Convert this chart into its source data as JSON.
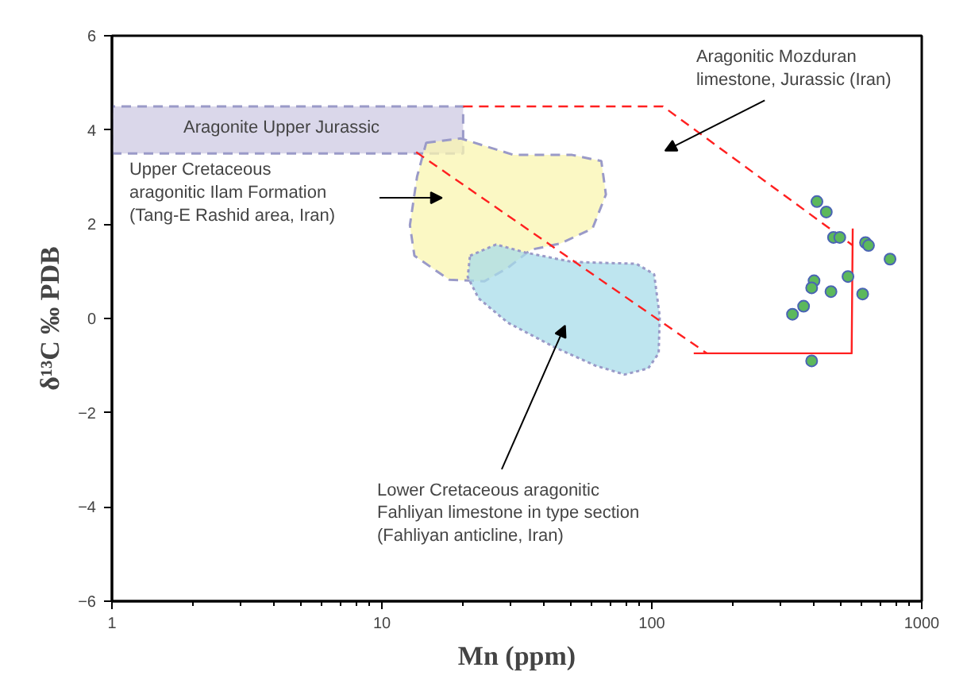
{
  "chart_data": {
    "type": "scatter",
    "xlabel": "Mn (ppm)",
    "ylabel": "δ¹³C ‰ PDB",
    "log": "x",
    "xlim": [
      1,
      1000
    ],
    "ylim": [
      -6,
      6
    ],
    "xticks": [
      1,
      10,
      100,
      1000
    ],
    "yticks": [
      -6,
      -4,
      -2,
      0,
      2,
      4,
      6
    ],
    "grid": false,
    "series": [
      {
        "type": "area",
        "color": "#cdc9e3",
        "line_style": "dashed",
        "x": [
          1,
          20,
          20,
          1,
          1
        ],
        "values": [
          3.5,
          3.5,
          4.5,
          4.5,
          3.5
        ]
      },
      {
        "type": "area",
        "color": "#faf5b0",
        "line_style": "dashed",
        "x": [
          14.6,
          19.6,
          30.8,
          50.7,
          65.0,
          67.6,
          60.3,
          45.8,
          35.7,
          29.2,
          24.0,
          17.8,
          13.2,
          12.7,
          13.5
        ],
        "values": [
          3.73,
          3.82,
          3.47,
          3.47,
          3.34,
          2.63,
          1.91,
          1.59,
          1.46,
          1.07,
          0.79,
          0.82,
          1.33,
          1.98,
          3.01
        ]
      },
      {
        "type": "area",
        "color": "#a8dcea",
        "line_style": "dotted",
        "x": [
          21.2,
          26.5,
          34.0,
          50.7,
          87.7,
          102,
          107,
          106,
          96.9,
          79.3,
          61.8,
          43.6,
          29.3,
          22.8,
          20.8
        ],
        "values": [
          1.33,
          1.57,
          1.4,
          1.2,
          1.16,
          0.94,
          0.04,
          -0.74,
          -1.06,
          -1.19,
          -1.0,
          -0.61,
          -0.09,
          0.43,
          0.88
        ]
      },
      {
        "type": "line",
        "color": "#ff2020",
        "line_style": "dashed",
        "x": [
          20,
          110,
          555
        ],
        "values": [
          4.5,
          4.5,
          1.55
        ]
      },
      {
        "type": "line",
        "color": "#ff2020",
        "line_style": "dashed",
        "x": [
          13.4,
          160
        ],
        "values": [
          3.53,
          -0.74
        ]
      },
      {
        "type": "line",
        "color": "#ff2020",
        "line_style": "solid",
        "x": [
          143,
          550,
          555
        ],
        "values": [
          -0.74,
          -0.74,
          1.91
        ]
      },
      {
        "color": "#5cb85c",
        "marker": "circle",
        "x": [
          409,
          443,
          471,
          497,
          619,
          635,
          763,
          399,
          391,
          533,
          461,
          604,
          365,
          332,
          391
        ],
        "values": [
          2.48,
          2.26,
          1.72,
          1.72,
          1.61,
          1.55,
          1.26,
          0.8,
          0.65,
          0.89,
          0.57,
          0.52,
          0.26,
          0.09,
          -0.9
        ]
      }
    ],
    "annotations": [
      "Aragonite Upper Jurassic",
      "Aragonitic Mozduran\nlimestone, Jurassic (Iran)",
      "Upper Cretaceous\naragonitic Ilam Formation\n(Tang-E Rashid area, Iran)",
      "Lower Cretaceous aragonitic\nFahliyan limestone in type section\n(Fahliyan anticline, Iran)"
    ]
  }
}
